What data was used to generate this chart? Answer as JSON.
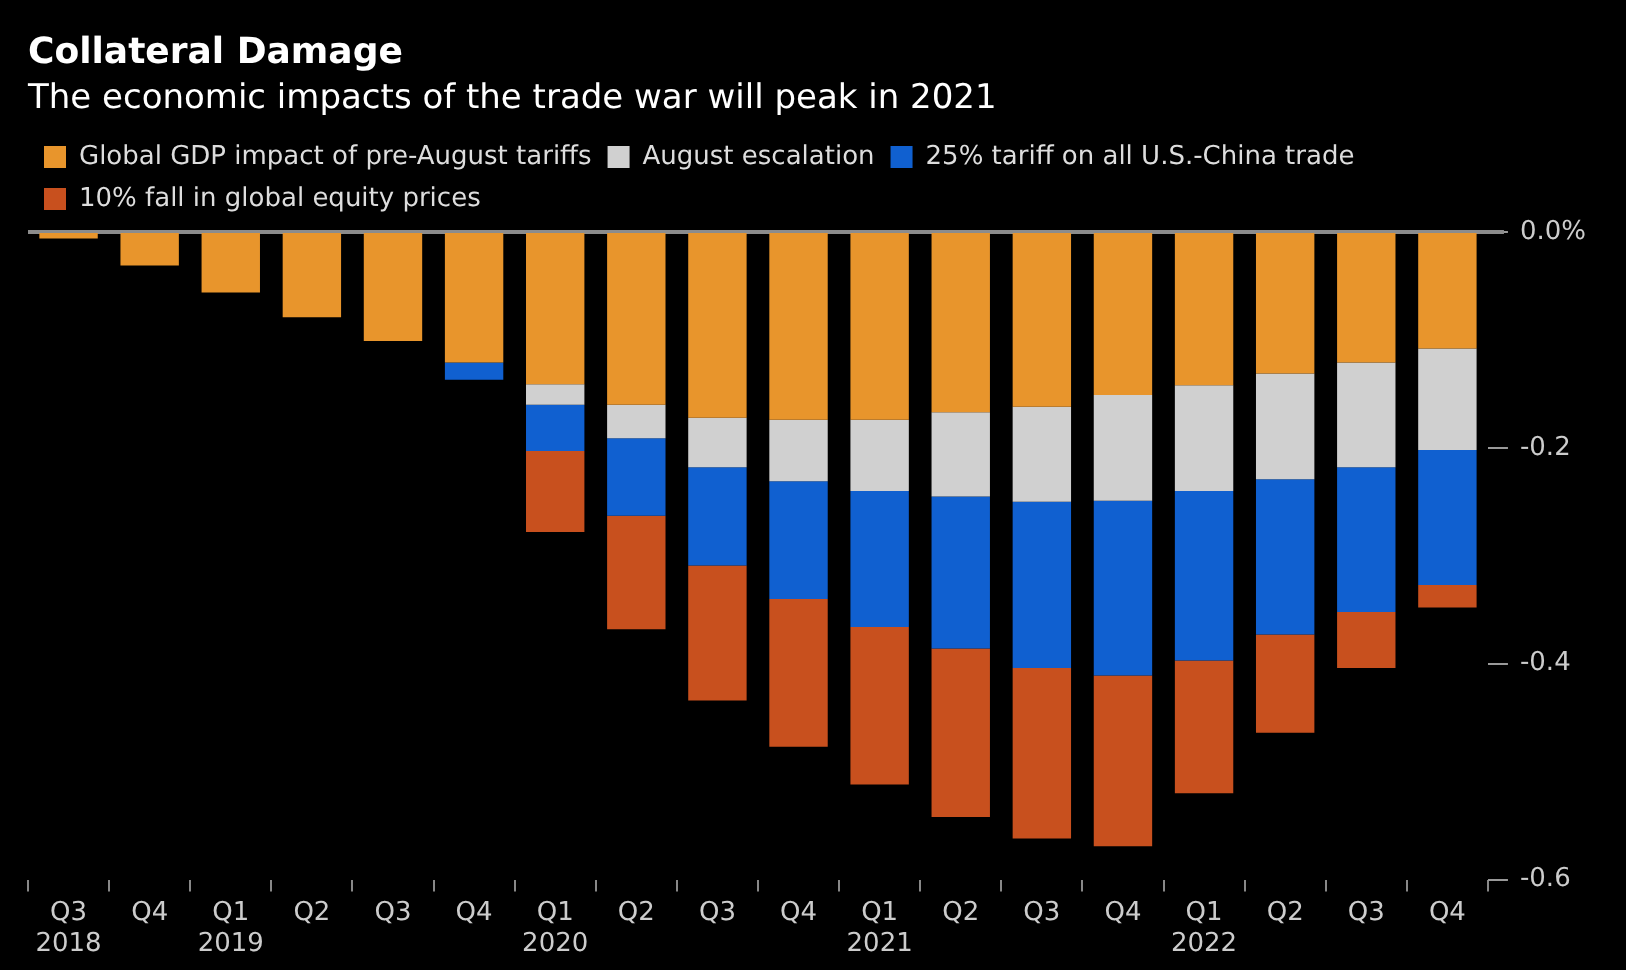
{
  "chart_data": {
    "type": "bar",
    "title": "Collateral Damage",
    "subtitle": "The economic impacts of the trade war will peak in 2021",
    "categories": [
      "Q3\n2018",
      "Q4",
      "Q1\n2019",
      "Q2",
      "Q3",
      "Q4",
      "Q1\n2020",
      "Q2",
      "Q3",
      "Q4",
      "Q1\n2021",
      "Q2",
      "Q3",
      "Q4",
      "Q1\n2022",
      "Q2",
      "Q3",
      "Q4"
    ],
    "stacked": true,
    "series": [
      {
        "name": "Global GDP impact of pre-August tariffs",
        "color": "#e8952c",
        "values": [
          -0.006,
          -0.031,
          -0.056,
          -0.079,
          -0.101,
          -0.121,
          -0.141,
          -0.16,
          -0.172,
          -0.174,
          -0.174,
          -0.167,
          -0.162,
          -0.151,
          -0.142,
          -0.131,
          -0.121,
          -0.108
        ]
      },
      {
        "name": "August escalation",
        "color": "#d0d0d0",
        "values": [
          null,
          null,
          null,
          null,
          null,
          null,
          -0.019,
          -0.031,
          -0.046,
          -0.057,
          -0.066,
          -0.078,
          -0.088,
          -0.098,
          -0.098,
          -0.098,
          -0.097,
          -0.094
        ]
      },
      {
        "name": "25% tariff on all U.S.-China trade",
        "color": "#1060d0",
        "values": [
          null,
          null,
          null,
          null,
          null,
          -0.016,
          -0.043,
          -0.072,
          -0.091,
          -0.109,
          -0.126,
          -0.141,
          -0.154,
          -0.162,
          -0.157,
          -0.144,
          -0.134,
          -0.125
        ]
      },
      {
        "name": "10% fall in global equity prices",
        "color": "#c8501e",
        "values": [
          null,
          null,
          null,
          null,
          null,
          null,
          -0.075,
          -0.105,
          -0.125,
          -0.137,
          -0.146,
          -0.156,
          -0.158,
          -0.158,
          -0.123,
          -0.091,
          -0.052,
          -0.021
        ]
      }
    ],
    "ylim": [
      -0.6,
      0
    ],
    "yticks": [
      {
        "value": 0,
        "label": "0.0%"
      },
      -0.2,
      -0.4,
      -0.6
    ],
    "ref_lines": [
      {
        "axis": "y",
        "value": 0,
        "color": "#8c8c8c"
      }
    ],
    "grid": false,
    "legend": "top left"
  }
}
